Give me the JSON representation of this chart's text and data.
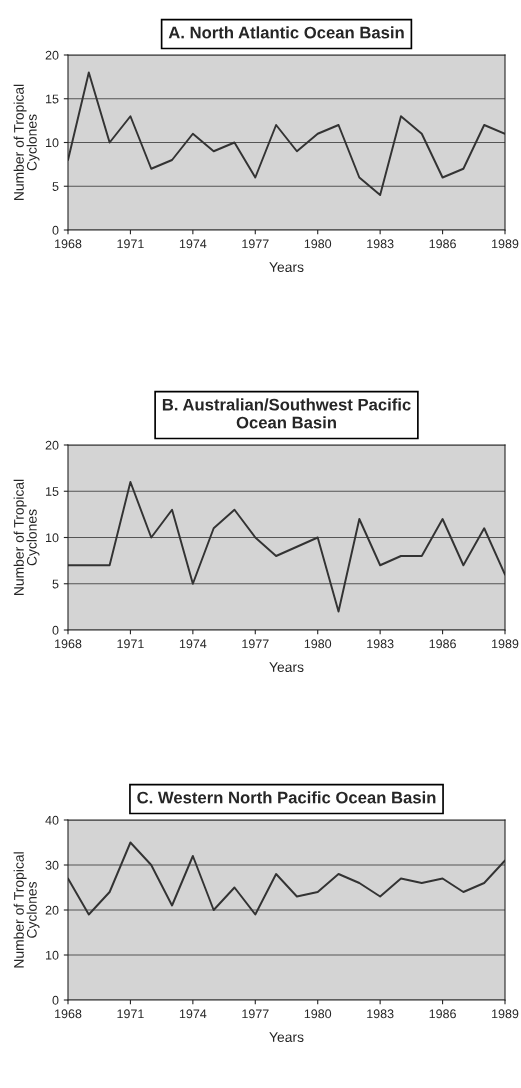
{
  "chart_data": [
    {
      "type": "line",
      "title": "A. North Atlantic Ocean Basin",
      "xlabel": "Years",
      "ylabel": "Number of Tropical\nCyclones",
      "x": [
        1968,
        1969,
        1970,
        1971,
        1972,
        1973,
        1974,
        1975,
        1976,
        1977,
        1978,
        1979,
        1980,
        1981,
        1982,
        1983,
        1984,
        1985,
        1986,
        1987,
        1988,
        1989
      ],
      "series": [
        {
          "color": "#333333",
          "values": [
            8,
            18,
            10,
            13,
            7,
            8,
            11,
            9,
            10,
            6,
            12,
            9,
            11,
            12,
            6,
            4,
            13,
            11,
            6,
            7,
            12,
            11
          ]
        }
      ],
      "xlim": [
        1968,
        1989
      ],
      "xticks": [
        1968,
        1971,
        1974,
        1977,
        1980,
        1983,
        1986,
        1989
      ],
      "ylim": [
        0,
        20
      ],
      "yticks": [
        0,
        5,
        10,
        15,
        20
      ],
      "grid": "y",
      "marker": "none",
      "line_style": "solid"
    },
    {
      "type": "line",
      "title": "B. Australian/Southwest Pacific\nOcean Basin",
      "xlabel": "Years",
      "ylabel": "Number of Tropical\nCyclones",
      "x": [
        1968,
        1969,
        1970,
        1971,
        1972,
        1973,
        1974,
        1975,
        1976,
        1977,
        1978,
        1979,
        1980,
        1981,
        1982,
        1983,
        1984,
        1985,
        1986,
        1987,
        1988,
        1989
      ],
      "series": [
        {
          "color": "#333333",
          "values": [
            7,
            7,
            7,
            16,
            10,
            13,
            5,
            11,
            13,
            10,
            8,
            9,
            10,
            2,
            12,
            7,
            8,
            8,
            12,
            7,
            11,
            6
          ]
        }
      ],
      "xlim": [
        1968,
        1989
      ],
      "xticks": [
        1968,
        1971,
        1974,
        1977,
        1980,
        1983,
        1986,
        1989
      ],
      "ylim": [
        0,
        20
      ],
      "yticks": [
        0,
        5,
        10,
        15,
        20
      ],
      "grid": "y",
      "marker": "none",
      "line_style": "solid"
    },
    {
      "type": "line",
      "title": "C. Western North Pacific Ocean Basin",
      "xlabel": "Years",
      "ylabel": "Number of Tropical\nCyclones",
      "x": [
        1968,
        1969,
        1970,
        1971,
        1972,
        1973,
        1974,
        1975,
        1976,
        1977,
        1978,
        1979,
        1980,
        1981,
        1982,
        1983,
        1984,
        1985,
        1986,
        1987,
        1988,
        1989
      ],
      "series": [
        {
          "color": "#333333",
          "values": [
            27,
            19,
            24,
            35,
            30,
            21,
            32,
            20,
            25,
            19,
            28,
            23,
            24,
            28,
            26,
            23,
            27,
            26,
            27,
            24,
            26,
            31
          ]
        }
      ],
      "xlim": [
        1968,
        1989
      ],
      "xticks": [
        1968,
        1971,
        1974,
        1977,
        1980,
        1983,
        1986,
        1989
      ],
      "ylim": [
        0,
        40
      ],
      "yticks": [
        0,
        10,
        20,
        30,
        40
      ],
      "grid": "y",
      "marker": "none",
      "line_style": "solid"
    }
  ]
}
